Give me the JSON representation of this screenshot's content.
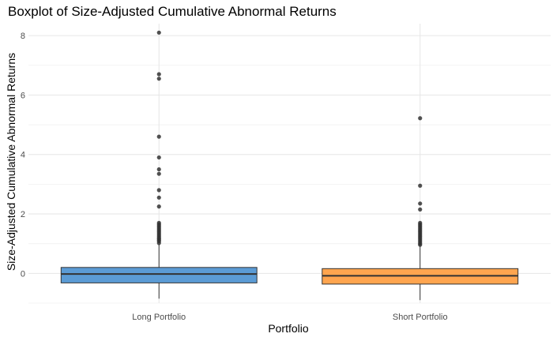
{
  "chart_data": {
    "type": "boxplot",
    "title": "Boxplot of Size-Adjusted Cumulative Abnormal Returns",
    "xlabel": "Portfolio",
    "ylabel": "Size-Adjusted Cumulative Abnormal Returns",
    "ylim": [
      -1.0,
      8.4
    ],
    "yticks": [
      0,
      2,
      4,
      6,
      8
    ],
    "grid": true,
    "categories": [
      "Long Portfolio",
      "Short Portfolio"
    ],
    "colors": [
      "#5b9bd5",
      "#ffa54f"
    ],
    "boxes": [
      {
        "category": "Long Portfolio",
        "whisker_low": -0.85,
        "q1": -0.32,
        "median": -0.02,
        "q3": 0.2,
        "whisker_high": 0.98,
        "outliers": [
          1.02,
          1.08,
          1.12,
          1.16,
          1.2,
          1.25,
          1.3,
          1.35,
          1.4,
          1.45,
          1.5,
          1.55,
          1.6,
          1.65,
          1.7,
          2.25,
          2.55,
          2.8,
          3.35,
          3.5,
          3.9,
          4.6,
          6.55,
          6.7,
          8.1
        ]
      },
      {
        "category": "Short Portfolio",
        "whisker_low": -0.9,
        "q1": -0.36,
        "median": -0.08,
        "q3": 0.16,
        "whisker_high": 0.92,
        "outliers": [
          0.96,
          1.0,
          1.05,
          1.1,
          1.15,
          1.2,
          1.25,
          1.3,
          1.35,
          1.4,
          1.45,
          1.5,
          1.55,
          1.6,
          1.65,
          1.7,
          2.15,
          2.35,
          2.95,
          5.22
        ]
      }
    ]
  }
}
